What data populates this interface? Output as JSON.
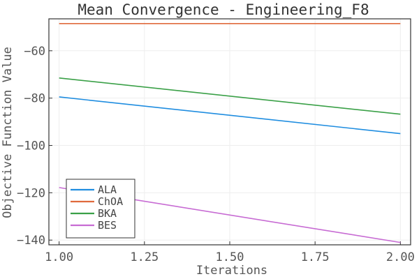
{
  "chart_data": {
    "type": "line",
    "title": "Mean Convergence - Engineering_F8",
    "xlabel": "Iterations",
    "ylabel": "Objective Function Value",
    "xlim": [
      0.97,
      2.03
    ],
    "ylim": [
      -142,
      -46.5
    ],
    "x_ticks": [
      1.0,
      1.25,
      1.5,
      1.75,
      2.0
    ],
    "x_tick_labels": [
      "1.00",
      "1.25",
      "1.50",
      "1.75",
      "2.00"
    ],
    "y_ticks": [
      -60,
      -80,
      -100,
      -120,
      -140
    ],
    "y_tick_labels": [
      "−60",
      "−80",
      "−100",
      "−120",
      "−140"
    ],
    "grid": true,
    "legend_position": "bottom-left",
    "x": [
      1,
      2
    ],
    "series": [
      {
        "name": "ALA",
        "color": "#1f8de0",
        "values": [
          -79.5,
          -95.0
        ]
      },
      {
        "name": "ChOA",
        "color": "#e06a3c",
        "values": [
          -48.5,
          -48.5
        ]
      },
      {
        "name": "BKA",
        "color": "#3aa047",
        "values": [
          -71.5,
          -86.8
        ]
      },
      {
        "name": "BES",
        "color": "#c76bd3",
        "values": [
          -117.8,
          -141.0
        ]
      }
    ]
  }
}
